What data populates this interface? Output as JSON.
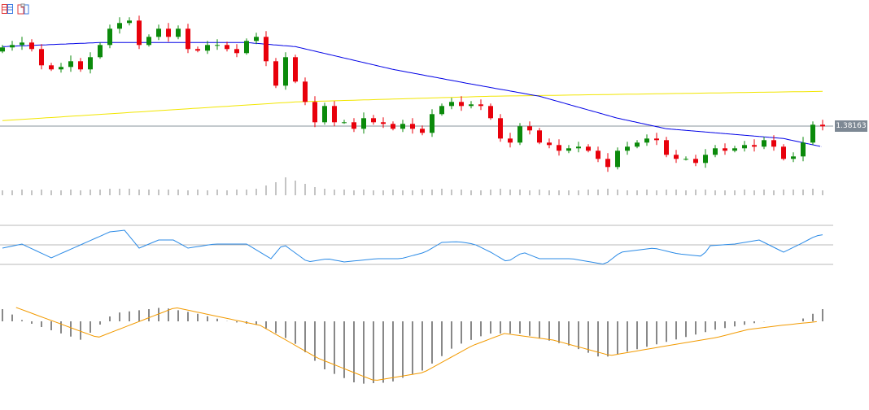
{
  "toolbar": {
    "icons": [
      "list-layout-icon",
      "template-icon"
    ]
  },
  "colors": {
    "up": "#0b8a0b",
    "down": "#e8000b",
    "ma_fast": "#0000e6",
    "ma_slow": "#f2e600",
    "rsi": "#2a8ae6",
    "signal": "#f29a00",
    "hist": "#111111",
    "level": "#b8b8b8"
  },
  "chart_data": {
    "type": "candlestick",
    "current_price_label": "1.38163",
    "current_price": 1.38163,
    "closes": [
      1.3913,
      1.3916,
      1.3919,
      1.3911,
      1.3891,
      1.3886,
      1.3889,
      1.3896,
      1.3886,
      1.3901,
      1.3916,
      1.3936,
      1.3943,
      1.3946,
      1.3916,
      1.3926,
      1.3936,
      1.3926,
      1.3936,
      1.3911,
      1.3909,
      1.3916,
      1.3916,
      1.3911,
      1.3906,
      1.3921,
      1.3926,
      1.3896,
      1.3866,
      1.3901,
      1.3871,
      1.3846,
      1.3821,
      1.3841,
      1.3821,
      1.3821,
      1.3813,
      1.3826,
      1.3821,
      1.3819,
      1.3813,
      1.3819,
      1.3813,
      1.3808,
      1.3831,
      1.3841,
      1.3846,
      1.3841,
      1.3843,
      1.3841,
      1.3826,
      1.3801,
      1.3796,
      1.3816,
      1.3811,
      1.3796,
      1.3793,
      1.3786,
      1.3789,
      1.3791,
      1.3786,
      1.3776,
      1.3766,
      1.3786,
      1.3791,
      1.3796,
      1.3801,
      1.3799,
      1.3781,
      1.3776,
      1.3776,
      1.3771,
      1.3781,
      1.3789,
      1.3786,
      1.3789,
      1.3793,
      1.3791,
      1.3799,
      1.3791,
      1.3776,
      1.3779,
      1.3796,
      1.3818,
      1.3816
    ],
    "first_open": 1.3908,
    "volume": [
      6,
      6,
      7,
      6,
      7,
      6,
      6,
      7,
      6,
      7,
      7,
      8,
      8,
      8,
      7,
      7,
      7,
      7,
      7,
      6,
      7,
      6,
      7,
      6,
      7,
      7,
      8,
      12,
      16,
      22,
      18,
      14,
      10,
      8,
      7,
      7,
      6,
      7,
      6,
      6,
      7,
      6,
      6,
      7,
      7,
      8,
      7,
      7,
      6,
      6,
      7,
      8,
      7,
      7,
      6,
      7,
      6,
      6,
      6,
      6,
      7,
      7,
      8,
      7,
      6,
      6,
      7,
      6,
      7,
      7,
      6,
      7,
      7,
      6,
      6,
      6,
      7,
      6,
      7,
      6,
      7,
      7,
      7,
      8,
      6
    ],
    "ma_fast_knots": [
      [
        0,
        1.3914
      ],
      [
        10,
        1.3919
      ],
      [
        25,
        1.3919
      ],
      [
        30,
        1.3914
      ],
      [
        40,
        1.3886
      ],
      [
        48,
        1.3868
      ],
      [
        55,
        1.3853
      ],
      [
        63,
        1.3826
      ],
      [
        68,
        1.3813
      ],
      [
        80,
        1.3801
      ],
      [
        83.9,
        1.3791
      ]
    ],
    "ma_slow_knots": [
      [
        0,
        1.3823
      ],
      [
        30,
        1.3846
      ],
      [
        50,
        1.3853
      ],
      [
        84,
        1.3859
      ]
    ],
    "rsi": {
      "levels": [
        70,
        50,
        30
      ],
      "range": [
        30,
        70
      ],
      "knots": [
        [
          0,
          46.7
        ],
        [
          2,
          50.8
        ],
        [
          5,
          36.7
        ],
        [
          11,
          63.3
        ],
        [
          12.5,
          65
        ],
        [
          14,
          46.7
        ],
        [
          16,
          55
        ],
        [
          17.5,
          55
        ],
        [
          19,
          46.7
        ],
        [
          21.7,
          50.8
        ],
        [
          25,
          50.8
        ],
        [
          27.5,
          35.8
        ],
        [
          28.75,
          50.8
        ],
        [
          31.25,
          32.5
        ],
        [
          33.3,
          35.8
        ],
        [
          35,
          32.5
        ],
        [
          38.3,
          35.8
        ],
        [
          40.8,
          35.8
        ],
        [
          43.3,
          42.5
        ],
        [
          45,
          52.5
        ],
        [
          46.7,
          53.3
        ],
        [
          48.3,
          50.8
        ],
        [
          50,
          42.5
        ],
        [
          51.7,
          32.5
        ],
        [
          53.3,
          42.5
        ],
        [
          55,
          35.8
        ],
        [
          58.3,
          35.8
        ],
        [
          61.7,
          30
        ],
        [
          63.3,
          42.5
        ],
        [
          66.7,
          46.7
        ],
        [
          69.2,
          40.8
        ],
        [
          71.7,
          38.3
        ],
        [
          72.5,
          49.2
        ],
        [
          75,
          50.8
        ],
        [
          77.5,
          55
        ],
        [
          80,
          42.5
        ],
        [
          81.7,
          50.8
        ],
        [
          83.3,
          59.2
        ],
        [
          84.3,
          60.8
        ]
      ]
    },
    "macd": {
      "hist_knots": [
        [
          0,
          0.0003
        ],
        [
          2.25,
          0
        ],
        [
          4.75,
          -0.0002
        ],
        [
          8.1,
          -0.00046
        ],
        [
          11.4,
          0.0002
        ],
        [
          16.4,
          0.00034
        ],
        [
          19.75,
          0.0002
        ],
        [
          23.1,
          0
        ],
        [
          26.4,
          -0.0001
        ],
        [
          29.75,
          -0.0005
        ],
        [
          33.1,
          -0.0012
        ],
        [
          36.4,
          -0.00154
        ],
        [
          39.75,
          -0.0015
        ],
        [
          43.1,
          -0.0012
        ],
        [
          46.4,
          -0.0006
        ],
        [
          49.75,
          -0.0003
        ],
        [
          53.1,
          -0.0003
        ],
        [
          58.1,
          -0.0006
        ],
        [
          61.4,
          -0.0009
        ],
        [
          64.75,
          -0.0007
        ],
        [
          68.1,
          -0.0005
        ],
        [
          73.1,
          -0.0002
        ],
        [
          78.1,
          0
        ],
        [
          81.4,
          0
        ],
        [
          84,
          0.0003
        ]
      ],
      "signal_knots": [
        [
          1.4,
          0.00034
        ],
        [
          9.75,
          -0.0004
        ],
        [
          17.7,
          0.00034
        ],
        [
          26.4,
          -0.0001
        ],
        [
          32.25,
          -0.0009
        ],
        [
          38.1,
          -0.00146
        ],
        [
          43.1,
          -0.00126
        ],
        [
          48.1,
          -0.0006
        ],
        [
          51.4,
          -0.0003
        ],
        [
          56.4,
          -0.00046
        ],
        [
          62.25,
          -0.00084
        ],
        [
          68.1,
          -0.0006
        ],
        [
          73.1,
          -0.0004
        ],
        [
          76.4,
          -0.0002
        ],
        [
          79.75,
          -0.0001
        ],
        [
          83.75,
          0
        ]
      ]
    }
  }
}
